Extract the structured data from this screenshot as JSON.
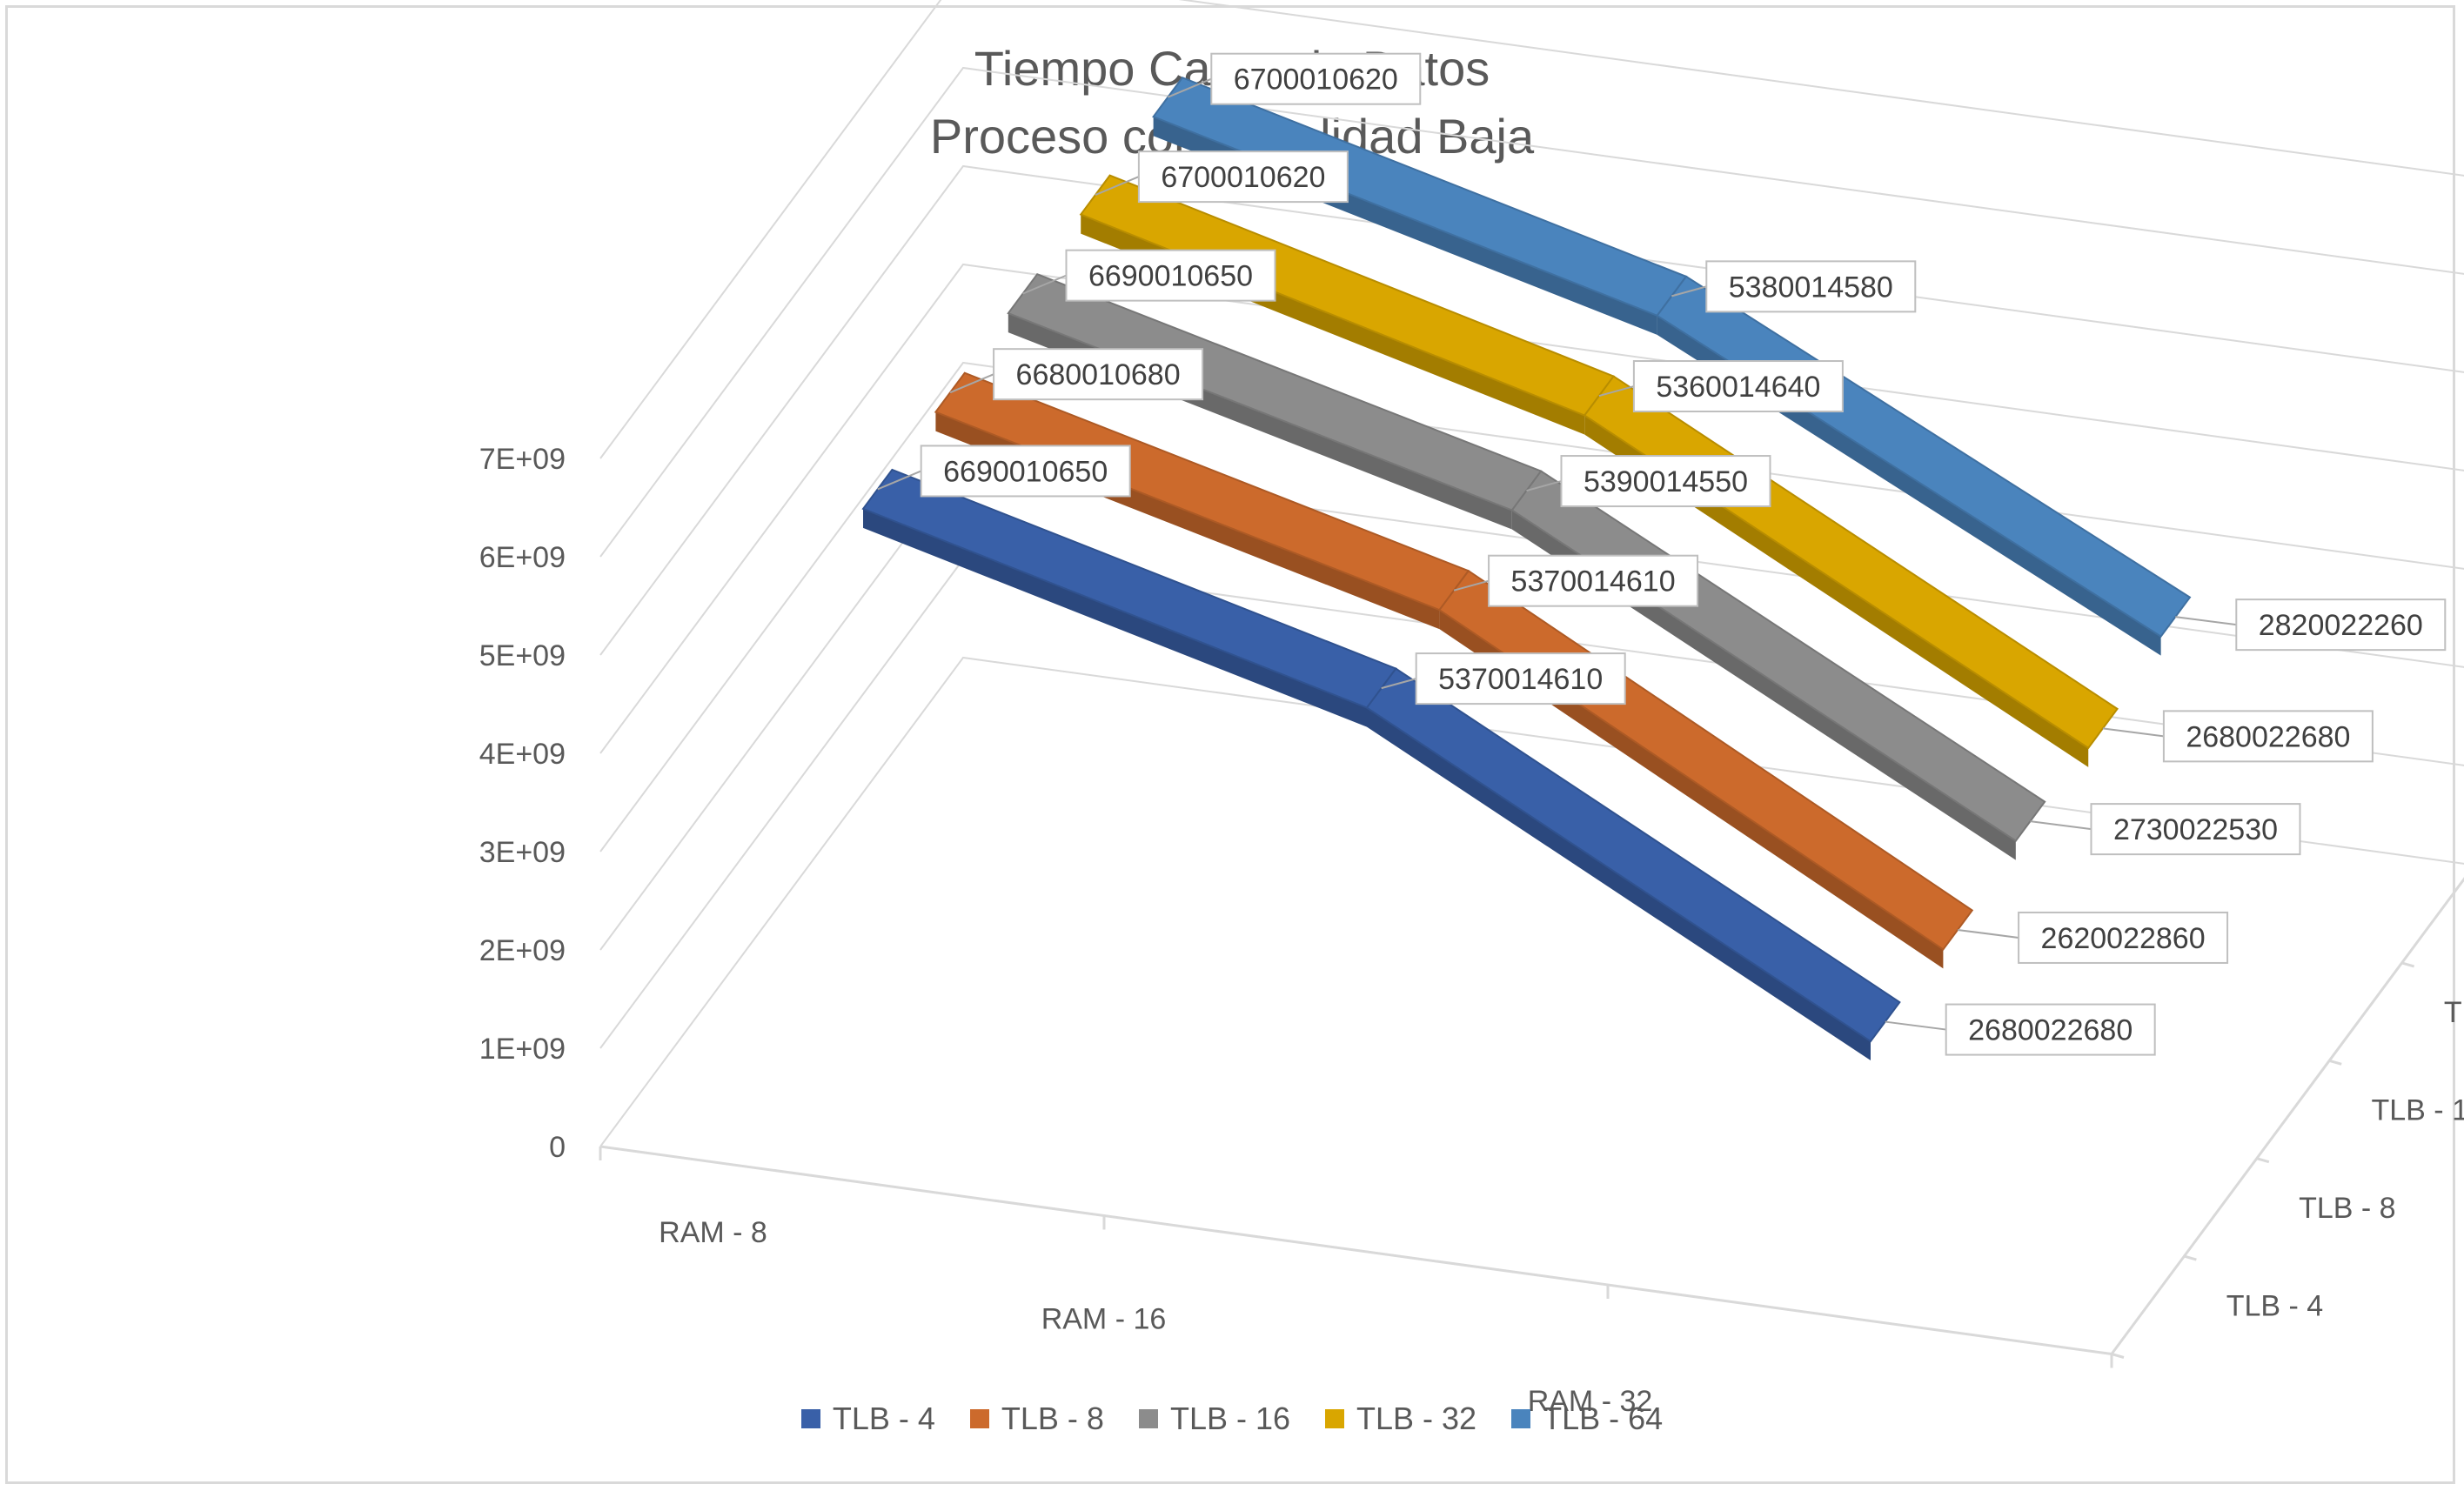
{
  "chart_data": {
    "type": "3d-line",
    "title_lines": [
      "Tiempo Carga de Datos",
      "Proceso con Localidad Baja"
    ],
    "categories": [
      "RAM - 8",
      "RAM - 16",
      "RAM - 32"
    ],
    "depth_labels": [
      "TLB - 4",
      "TLB - 8",
      "TLB - 16",
      "TLB - 32",
      "TLB - 64"
    ],
    "y_ticks": [
      "0",
      "1E+09",
      "2E+09",
      "3E+09",
      "4E+09",
      "5E+09",
      "6E+09",
      "7E+09"
    ],
    "ylim": [
      0,
      7000000000
    ],
    "series": [
      {
        "name": "TLB - 4",
        "color": "#3960a8",
        "values": [
          6690010650,
          5370014610,
          2680022680
        ]
      },
      {
        "name": "TLB - 8",
        "color": "#cc6a2c",
        "values": [
          6680010680,
          5370014610,
          2620022860
        ]
      },
      {
        "name": "TLB - 16",
        "color": "#8c8c8c",
        "values": [
          6690010650,
          5390014550,
          2730022530
        ]
      },
      {
        "name": "TLB - 32",
        "color": "#d9a600",
        "values": [
          6700010620,
          5360014640,
          2680022680
        ]
      },
      {
        "name": "TLB - 64",
        "color": "#4a84bd",
        "values": [
          6700010620,
          5380014580,
          2820022260
        ]
      }
    ],
    "legend": "bottom"
  }
}
